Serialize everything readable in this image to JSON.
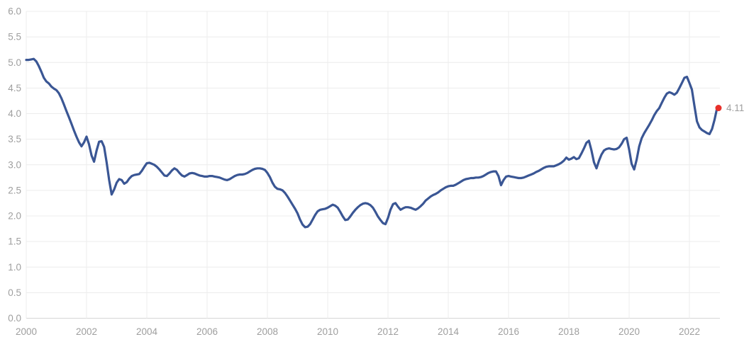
{
  "chart_data": {
    "type": "line",
    "title": "",
    "xlabel": "",
    "ylabel": "",
    "ylim": [
      0.0,
      6.0
    ],
    "y_tick_step": 0.5,
    "y_tick_labels": [
      "0.0",
      "0.5",
      "1.0",
      "1.5",
      "2.0",
      "2.5",
      "3.0",
      "3.5",
      "4.0",
      "4.5",
      "5.0",
      "5.5",
      "6.0"
    ],
    "x_start_year": 2000,
    "points_per_year": 12,
    "x_tick_years": [
      2000,
      2002,
      2004,
      2006,
      2008,
      2010,
      2012,
      2014,
      2016,
      2018,
      2020,
      2022
    ],
    "x_tick_labels": [
      "2000",
      "2002",
      "2004",
      "2006",
      "2008",
      "2010",
      "2012",
      "2014",
      "2016",
      "2018",
      "2020",
      "2022"
    ],
    "grid": true,
    "legend": "none",
    "end_label": "4.11",
    "end_value": 4.11,
    "series": [
      {
        "name": "monthly-value",
        "values": [
          5.05,
          5.05,
          5.06,
          5.07,
          5.02,
          4.93,
          4.82,
          4.7,
          4.63,
          4.59,
          4.53,
          4.49,
          4.46,
          4.4,
          4.3,
          4.18,
          4.05,
          3.93,
          3.8,
          3.67,
          3.55,
          3.44,
          3.36,
          3.44,
          3.55,
          3.4,
          3.18,
          3.06,
          3.28,
          3.45,
          3.46,
          3.35,
          3.05,
          2.7,
          2.42,
          2.52,
          2.65,
          2.72,
          2.7,
          2.63,
          2.66,
          2.73,
          2.78,
          2.8,
          2.81,
          2.82,
          2.88,
          2.96,
          3.03,
          3.04,
          3.02,
          3.0,
          2.96,
          2.91,
          2.85,
          2.79,
          2.78,
          2.83,
          2.89,
          2.93,
          2.9,
          2.84,
          2.79,
          2.77,
          2.8,
          2.83,
          2.84,
          2.83,
          2.81,
          2.79,
          2.78,
          2.77,
          2.77,
          2.78,
          2.78,
          2.77,
          2.76,
          2.75,
          2.73,
          2.71,
          2.7,
          2.72,
          2.75,
          2.78,
          2.8,
          2.81,
          2.81,
          2.82,
          2.84,
          2.87,
          2.9,
          2.92,
          2.93,
          2.93,
          2.92,
          2.9,
          2.84,
          2.76,
          2.65,
          2.57,
          2.53,
          2.52,
          2.5,
          2.45,
          2.38,
          2.3,
          2.22,
          2.14,
          2.05,
          1.93,
          1.83,
          1.78,
          1.79,
          1.84,
          1.93,
          2.02,
          2.09,
          2.12,
          2.13,
          2.14,
          2.16,
          2.19,
          2.22,
          2.2,
          2.16,
          2.08,
          1.99,
          1.92,
          1.93,
          1.99,
          2.06,
          2.12,
          2.17,
          2.21,
          2.24,
          2.25,
          2.24,
          2.21,
          2.16,
          2.08,
          1.99,
          1.92,
          1.86,
          1.84,
          1.96,
          2.12,
          2.23,
          2.25,
          2.18,
          2.12,
          2.15,
          2.17,
          2.17,
          2.16,
          2.14,
          2.12,
          2.15,
          2.19,
          2.24,
          2.3,
          2.34,
          2.38,
          2.41,
          2.43,
          2.46,
          2.5,
          2.53,
          2.56,
          2.58,
          2.59,
          2.59,
          2.61,
          2.64,
          2.67,
          2.7,
          2.72,
          2.73,
          2.74,
          2.74,
          2.75,
          2.75,
          2.76,
          2.78,
          2.81,
          2.84,
          2.86,
          2.87,
          2.87,
          2.78,
          2.6,
          2.7,
          2.77,
          2.78,
          2.77,
          2.76,
          2.75,
          2.74,
          2.74,
          2.75,
          2.77,
          2.79,
          2.81,
          2.83,
          2.86,
          2.88,
          2.91,
          2.94,
          2.96,
          2.97,
          2.97,
          2.97,
          2.99,
          3.01,
          3.04,
          3.08,
          3.14,
          3.1,
          3.12,
          3.15,
          3.11,
          3.13,
          3.22,
          3.32,
          3.43,
          3.47,
          3.28,
          3.05,
          2.93,
          3.08,
          3.2,
          3.28,
          3.31,
          3.32,
          3.31,
          3.3,
          3.31,
          3.34,
          3.41,
          3.5,
          3.53,
          3.3,
          3.02,
          2.91,
          3.1,
          3.36,
          3.52,
          3.62,
          3.7,
          3.78,
          3.87,
          3.97,
          4.05,
          4.11,
          4.21,
          4.31,
          4.39,
          4.42,
          4.4,
          4.37,
          4.41,
          4.5,
          4.6,
          4.7,
          4.72,
          4.6,
          4.47,
          4.15,
          3.85,
          3.73,
          3.68,
          3.65,
          3.62,
          3.6,
          3.7,
          3.88,
          4.11
        ]
      }
    ]
  },
  "style": {
    "background": "#ffffff",
    "line_color": "#3a5694",
    "marker_color": "#e8302a",
    "grid_color": "#ececec",
    "axis_line_color": "#d6d6d6",
    "tick_text_color": "#9e9e9e",
    "end_label_color": "#9e9e9e"
  }
}
